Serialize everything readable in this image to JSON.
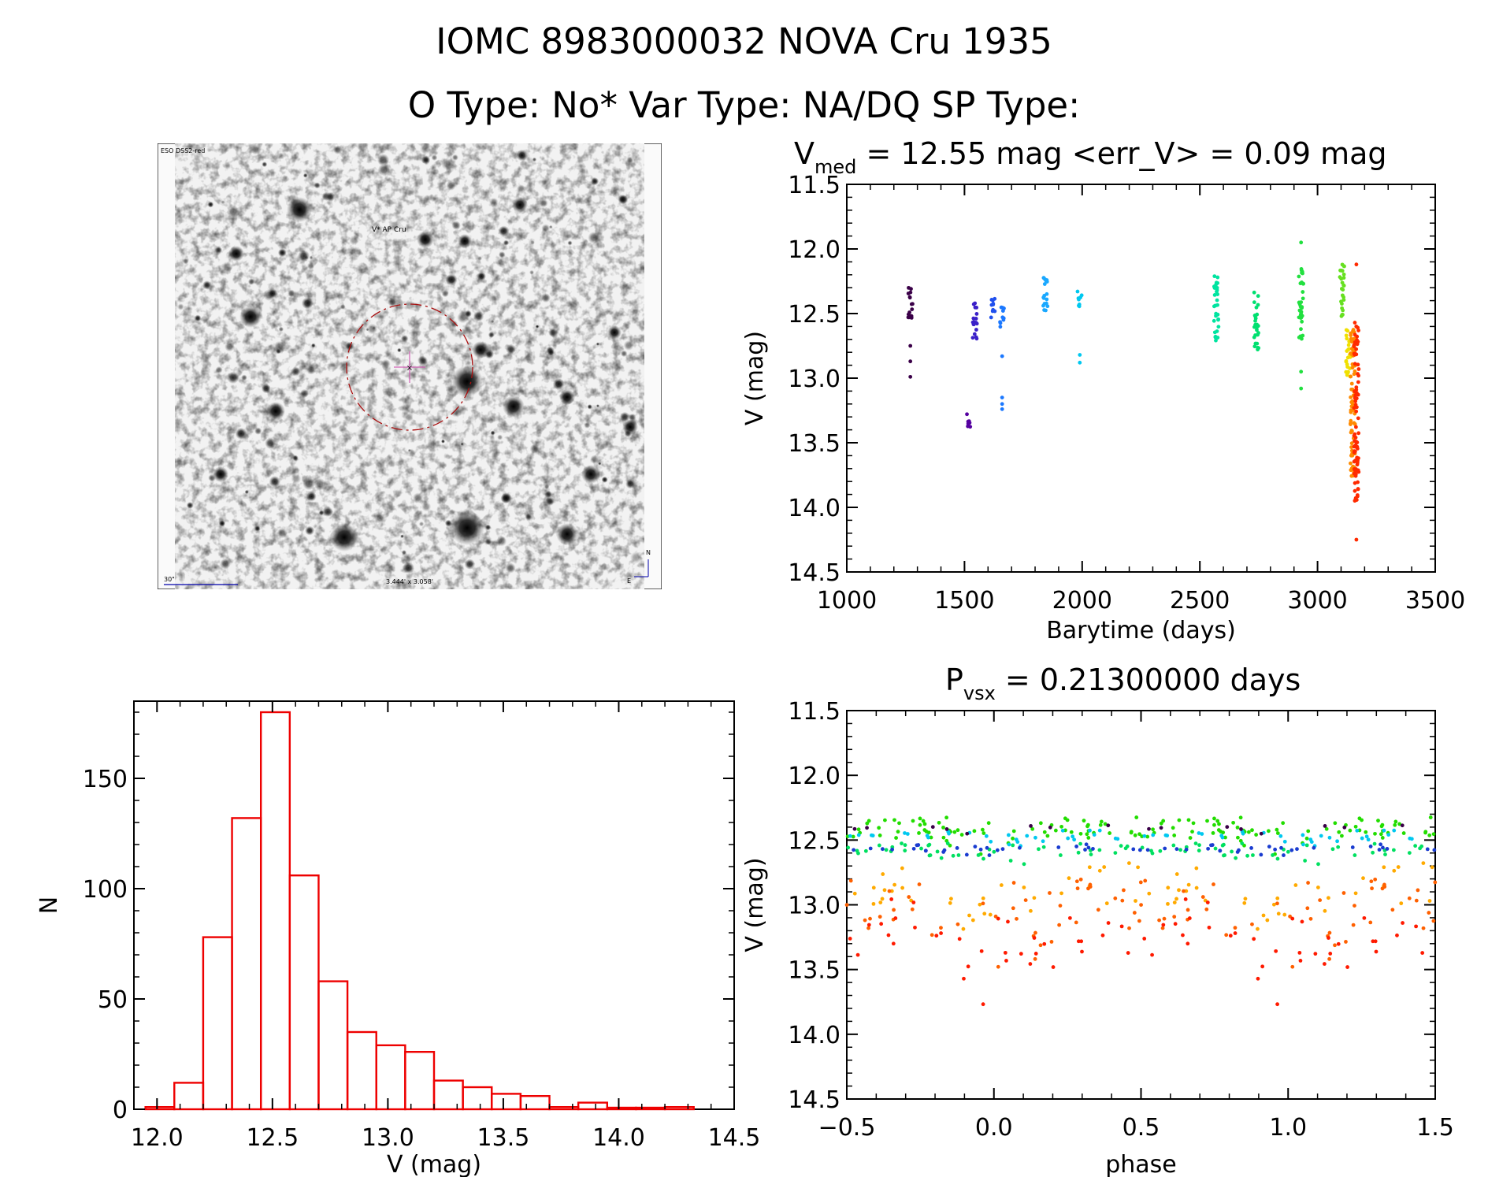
{
  "header": {
    "line1": "IOMC 8983000032   NOVA Cru 1935",
    "line2": "O Type: No*  Var Type: NA/DQ  SP Type:"
  },
  "finder_chart": {
    "survey_label": "ESO DSS2-red",
    "target_label": "V* AP Cru",
    "scale_label": "30\"",
    "size_label": "3.444' x 3.058'",
    "north_label": "N",
    "east_label": "E"
  },
  "colors": {
    "histogram": "#ee0000",
    "finder_circle": "#aa1010",
    "finder_label": "#aa0000",
    "finder_annot": "#0000aa"
  },
  "chart_data": [
    {
      "id": "lightcurve",
      "type": "scatter",
      "title_main": "V",
      "title_sub": "med",
      "title_rest": " = 12.55 mag <err_V> = 0.09 mag",
      "xlabel": "Barytime (days)",
      "ylabel": "V (mag)",
      "xlim": [
        1000,
        3500
      ],
      "ylim": [
        14.5,
        11.5
      ],
      "xticks": [
        "1000",
        "1500",
        "2000",
        "2500",
        "3000",
        "3500"
      ],
      "yticks": [
        "11.5",
        "12.0",
        "12.5",
        "13.0",
        "13.5",
        "14.0",
        "14.5"
      ],
      "groups": [
        {
          "x": 1270,
          "color": "#3a0048",
          "min": 12.28,
          "max": 12.55,
          "outliers": [
            12.75,
            12.87,
            12.99
          ]
        },
        {
          "x": 1520,
          "color": "#5500a0",
          "min": 13.25,
          "max": 13.38,
          "outliers": []
        },
        {
          "x": 1545,
          "color": "#3a20c8",
          "min": 12.42,
          "max": 12.72,
          "outliers": []
        },
        {
          "x": 1620,
          "color": "#2050ee",
          "min": 12.38,
          "max": 12.55,
          "outliers": []
        },
        {
          "x": 1660,
          "color": "#1b78ff",
          "min": 12.45,
          "max": 12.62,
          "outliers": [
            12.83,
            13.15,
            13.2,
            13.24
          ]
        },
        {
          "x": 1845,
          "color": "#1aa8ff",
          "min": 12.22,
          "max": 12.52,
          "outliers": []
        },
        {
          "x": 1990,
          "color": "#00c8f0",
          "min": 12.32,
          "max": 12.45,
          "outliers": [
            12.82,
            12.88
          ]
        },
        {
          "x": 2570,
          "color": "#00e4a0",
          "min": 12.2,
          "max": 12.72,
          "outliers": []
        },
        {
          "x": 2740,
          "color": "#00e070",
          "min": 12.33,
          "max": 12.78,
          "outliers": []
        },
        {
          "x": 2930,
          "color": "#22e040",
          "min": 12.15,
          "max": 12.72,
          "outliers": [
            11.95,
            12.95,
            13.08
          ]
        },
        {
          "x": 3105,
          "color": "#66e020",
          "min": 12.12,
          "max": 12.55,
          "outliers": []
        },
        {
          "x": 3130,
          "color": "#f0e000",
          "min": 12.6,
          "max": 13.0,
          "outliers": []
        },
        {
          "x": 3150,
          "color": "#ff8a00",
          "min": 12.6,
          "max": 13.8,
          "outliers": []
        },
        {
          "x": 3165,
          "color": "#ff2a00",
          "min": 12.55,
          "max": 13.95,
          "outliers": [
            12.12,
            14.25
          ]
        }
      ]
    },
    {
      "id": "histogram",
      "type": "bar",
      "xlabel": "V (mag)",
      "ylabel": "N",
      "xlim": [
        11.9,
        14.5
      ],
      "ylim": [
        0,
        185
      ],
      "xticks": [
        "12.0",
        "12.5",
        "13.0",
        "13.5",
        "14.0",
        "14.5"
      ],
      "yticks": [
        "0",
        "50",
        "100",
        "150"
      ],
      "bin_width": 0.125,
      "bin_starts": [
        11.95,
        12.075,
        12.2,
        12.325,
        12.45,
        12.575,
        12.7,
        12.825,
        12.95,
        13.075,
        13.2,
        13.325,
        13.45,
        13.575,
        13.7,
        13.825,
        13.95,
        14.075,
        14.2
      ],
      "counts": [
        1,
        12,
        78,
        132,
        180,
        106,
        58,
        35,
        29,
        26,
        13,
        10,
        7,
        6,
        1,
        3,
        0,
        0,
        1
      ]
    },
    {
      "id": "phased",
      "type": "scatter",
      "title_main": "P",
      "title_sub": "vsx",
      "title_rest": " = 0.21300000 days",
      "xlabel": "phase",
      "ylabel": "V (mag)",
      "xlim": [
        -0.5,
        1.5
      ],
      "ylim": [
        14.5,
        11.5
      ],
      "xticks": [
        "−0.5",
        "0.0",
        "0.5",
        "1.0",
        "1.5"
      ],
      "yticks": [
        "11.5",
        "12.0",
        "12.5",
        "13.0",
        "13.5",
        "14.0",
        "14.5"
      ],
      "period_days": 0.213,
      "bands": [
        {
          "color": "#22dd00",
          "center": 12.38,
          "spread": 0.16,
          "n": 70
        },
        {
          "color": "#00e060",
          "center": 12.55,
          "spread": 0.1,
          "n": 40
        },
        {
          "color": "#00c8f0",
          "center": 12.45,
          "spread": 0.08,
          "n": 30
        },
        {
          "color": "#1a3cd0",
          "center": 12.55,
          "spread": 0.05,
          "n": 28
        },
        {
          "color": "#3a0048",
          "center": 12.4,
          "spread": 0.05,
          "n": 8
        },
        {
          "color": "#ffaa00",
          "center": 12.8,
          "spread": 0.35,
          "n": 35
        },
        {
          "color": "#ff6000",
          "center": 12.95,
          "spread": 0.45,
          "n": 45
        },
        {
          "color": "#ff1a00",
          "center": 13.1,
          "spread": 0.45,
          "n": 35
        }
      ]
    }
  ]
}
